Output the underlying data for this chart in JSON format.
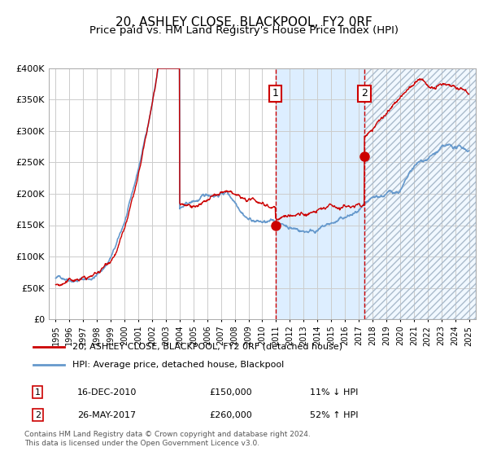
{
  "title": "20, ASHLEY CLOSE, BLACKPOOL, FY2 0RF",
  "subtitle": "Price paid vs. HM Land Registry's House Price Index (HPI)",
  "ylabel_values": [
    "£0",
    "£50K",
    "£100K",
    "£150K",
    "£200K",
    "£250K",
    "£300K",
    "£350K",
    "£400K"
  ],
  "yticks": [
    0,
    50000,
    100000,
    150000,
    200000,
    250000,
    300000,
    350000,
    400000
  ],
  "ylim": [
    0,
    400000
  ],
  "x_start_year": 1995,
  "x_end_year": 2025,
  "marker1_date_num": 2010.96,
  "marker1_price": 150000,
  "marker1_label": "1",
  "marker1_info": "16-DEC-2010    £150,000    11% ↓ HPI",
  "marker2_date_num": 2017.4,
  "marker2_price": 260000,
  "marker2_label": "2",
  "marker2_info": "26-MAY-2017    £260,000    52% ↑ HPI",
  "legend_line1": "20, ASHLEY CLOSE, BLACKPOOL, FY2 0RF (detached house)",
  "legend_line2": "HPI: Average price, detached house, Blackpool",
  "hpi_color": "#6699cc",
  "price_color": "#cc0000",
  "marker_color": "#cc0000",
  "shading_color": "#ddeeff",
  "background_color": "#ffffff",
  "grid_color": "#cccccc",
  "footnote": "Contains HM Land Registry data © Crown copyright and database right 2024.\nThis data is licensed under the Open Government Licence v3.0.",
  "title_fontsize": 11,
  "subtitle_fontsize": 9.5
}
